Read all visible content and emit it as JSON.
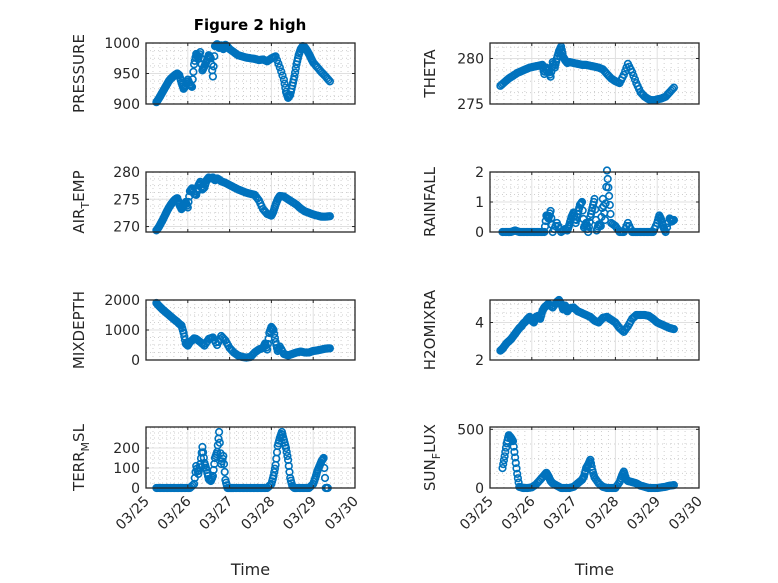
{
  "figure": {
    "title": "Figure 2 high",
    "marker_color": "#0072BD",
    "x_tick_labels": [
      "03/25",
      "03/26",
      "03/27",
      "03/28",
      "03/29",
      "03/30"
    ]
  },
  "chart_data": [
    {
      "type": "scatter",
      "title": "Figure 2 high",
      "ylabel": "PRESSURE",
      "xlabel": "",
      "xlim": [
        0,
        5
      ],
      "ylim": [
        900,
        1000
      ],
      "yticks": [
        900,
        950,
        1000
      ],
      "grid": true,
      "x": [
        0.25,
        0.3,
        0.35,
        0.4,
        0.45,
        0.5,
        0.55,
        0.6,
        0.65,
        0.7,
        0.75,
        0.8,
        0.85,
        0.9,
        0.95,
        1.0,
        1.05,
        1.1,
        1.15,
        1.2,
        1.25,
        1.3,
        1.35,
        1.4,
        1.45,
        1.5,
        1.55,
        1.6,
        1.65,
        1.7,
        1.75,
        1.8,
        1.85,
        1.9,
        1.95,
        2.0,
        2.1,
        2.2,
        2.3,
        2.4,
        2.5,
        2.6,
        2.7,
        2.8,
        2.9,
        3.0,
        3.1,
        3.2,
        3.3,
        3.35,
        3.4,
        3.45,
        3.5,
        3.55,
        3.6,
        3.65,
        3.7,
        3.75,
        3.8,
        3.85,
        3.9,
        3.95,
        4.0,
        4.1,
        4.2,
        4.3,
        4.4
      ],
      "values": [
        903,
        908,
        914,
        920,
        926,
        932,
        938,
        942,
        945,
        948,
        950,
        947,
        935,
        925,
        930,
        940,
        932,
        928,
        965,
        982,
        975,
        985,
        955,
        962,
        970,
        980,
        975,
        945,
        995,
        998,
        992,
        996,
        990,
        997,
        994,
        990,
        985,
        980,
        978,
        976,
        975,
        974,
        972,
        973,
        970,
        975,
        978,
        960,
        940,
        920,
        910,
        915,
        930,
        945,
        965,
        980,
        990,
        995,
        993,
        988,
        982,
        975,
        968,
        960,
        952,
        945,
        937
      ],
      "marker": "o"
    },
    {
      "type": "scatter",
      "ylabel": "THETA",
      "xlabel": "",
      "xlim": [
        0,
        5
      ],
      "ylim": [
        275,
        281.7
      ],
      "yticks": [
        275,
        280
      ],
      "grid": true,
      "x": [
        0.25,
        0.35,
        0.45,
        0.55,
        0.65,
        0.75,
        0.85,
        0.95,
        1.05,
        1.15,
        1.25,
        1.3,
        1.35,
        1.4,
        1.45,
        1.5,
        1.55,
        1.6,
        1.65,
        1.7,
        1.75,
        1.8,
        1.85,
        1.9,
        2.0,
        2.1,
        2.2,
        2.3,
        2.4,
        2.5,
        2.6,
        2.7,
        2.8,
        2.9,
        3.0,
        3.1,
        3.2,
        3.3,
        3.4,
        3.5,
        3.6,
        3.7,
        3.8,
        3.9,
        4.0,
        4.1,
        4.2,
        4.3,
        4.4
      ],
      "values": [
        277.0,
        277.4,
        277.8,
        278.1,
        278.4,
        278.6,
        278.8,
        279.0,
        279.1,
        279.2,
        279.3,
        278.3,
        279.0,
        278.7,
        278.0,
        279.6,
        279.0,
        280.0,
        280.8,
        281.3,
        280.2,
        279.8,
        279.5,
        279.6,
        279.5,
        279.4,
        279.3,
        279.3,
        279.2,
        279.1,
        279.0,
        278.8,
        278.3,
        277.8,
        277.5,
        277.3,
        278.2,
        279.4,
        278.5,
        277.3,
        276.3,
        275.8,
        275.5,
        275.4,
        275.5,
        275.6,
        275.8,
        276.3,
        276.8
      ],
      "marker": "o"
    },
    {
      "type": "scatter",
      "ylabel": "AIR_TEMP",
      "xlabel": "",
      "xlim": [
        0,
        5
      ],
      "ylim": [
        269,
        280
      ],
      "yticks": [
        270,
        275,
        280
      ],
      "grid": true,
      "x": [
        0.25,
        0.3,
        0.35,
        0.4,
        0.45,
        0.5,
        0.55,
        0.6,
        0.65,
        0.7,
        0.75,
        0.8,
        0.85,
        0.9,
        0.95,
        1.0,
        1.05,
        1.1,
        1.15,
        1.2,
        1.25,
        1.3,
        1.35,
        1.4,
        1.45,
        1.5,
        1.55,
        1.6,
        1.65,
        1.7,
        1.75,
        1.8,
        1.9,
        2.0,
        2.1,
        2.2,
        2.3,
        2.4,
        2.5,
        2.6,
        2.7,
        2.8,
        2.9,
        3.0,
        3.05,
        3.1,
        3.15,
        3.2,
        3.3,
        3.4,
        3.5,
        3.6,
        3.7,
        3.8,
        3.9,
        4.0,
        4.1,
        4.2,
        4.3,
        4.4
      ],
      "values": [
        269.3,
        269.8,
        270.5,
        271.2,
        272.0,
        272.8,
        273.5,
        274.1,
        274.6,
        275.0,
        275.2,
        274.0,
        273.2,
        273.8,
        274.5,
        273.5,
        276.5,
        277.0,
        276.0,
        275.8,
        277.5,
        278.2,
        276.8,
        277.2,
        278.5,
        279.0,
        278.8,
        279.0,
        278.5,
        278.8,
        278.6,
        278.3,
        278.0,
        277.6,
        277.2,
        276.8,
        276.5,
        276.2,
        276.0,
        275.8,
        274.8,
        273.2,
        272.3,
        272.0,
        272.8,
        274.0,
        275.0,
        275.6,
        275.5,
        275.0,
        274.5,
        274.0,
        273.3,
        272.8,
        272.5,
        272.2,
        272.0,
        271.8,
        271.8,
        271.9
      ],
      "marker": "o"
    },
    {
      "type": "scatter",
      "ylabel": "RAINFALL",
      "xlabel": "",
      "xlim": [
        0,
        5
      ],
      "ylim": [
        0,
        2
      ],
      "yticks": [
        0,
        1,
        2
      ],
      "grid": true,
      "x": [
        0.3,
        0.4,
        0.5,
        0.6,
        0.7,
        0.8,
        0.9,
        1.0,
        1.1,
        1.2,
        1.3,
        1.35,
        1.4,
        1.45,
        1.5,
        1.6,
        1.7,
        1.8,
        1.85,
        1.9,
        1.95,
        2.0,
        2.05,
        2.1,
        2.15,
        2.2,
        2.25,
        2.3,
        2.35,
        2.4,
        2.45,
        2.5,
        2.55,
        2.6,
        2.65,
        2.7,
        2.75,
        2.8,
        2.85,
        2.9,
        3.0,
        3.1,
        3.2,
        3.3,
        3.4,
        3.5,
        3.6,
        3.7,
        3.8,
        3.9,
        4.0,
        4.05,
        4.1,
        4.15,
        4.2,
        4.3,
        4.35,
        4.4
      ],
      "values": [
        0,
        0,
        0,
        0.05,
        0,
        0,
        0,
        0,
        0,
        0,
        0,
        0.55,
        0.45,
        0.7,
        0,
        0.3,
        0,
        0.1,
        0.05,
        0.25,
        0.5,
        0.65,
        0.3,
        0.6,
        0.9,
        1.0,
        0.15,
        0.3,
        0,
        0.5,
        0.8,
        1.1,
        0.05,
        0.25,
        0.2,
        1.1,
        0.4,
        2.05,
        1.2,
        0.3,
        0.2,
        0,
        0,
        0.3,
        0,
        0,
        0,
        0,
        0,
        0,
        0.3,
        0.55,
        0.4,
        0.15,
        0,
        0.45,
        0.35,
        0.4
      ],
      "marker": "o"
    },
    {
      "type": "scatter",
      "ylabel": "MIXDEPTH",
      "xlabel": "",
      "xlim": [
        0,
        5
      ],
      "ylim": [
        0,
        2000
      ],
      "yticks": [
        0,
        1000,
        2000
      ],
      "grid": true,
      "x": [
        0.25,
        0.3,
        0.35,
        0.4,
        0.45,
        0.5,
        0.55,
        0.6,
        0.65,
        0.7,
        0.75,
        0.8,
        0.85,
        0.9,
        0.95,
        1.0,
        1.05,
        1.1,
        1.15,
        1.2,
        1.3,
        1.4,
        1.5,
        1.6,
        1.7,
        1.8,
        1.9,
        2.0,
        2.1,
        2.2,
        2.3,
        2.4,
        2.5,
        2.6,
        2.7,
        2.8,
        2.85,
        2.9,
        2.95,
        3.0,
        3.05,
        3.1,
        3.15,
        3.2,
        3.3,
        3.4,
        3.5,
        3.6,
        3.7,
        3.8,
        3.9,
        4.0,
        4.1,
        4.2,
        4.3,
        4.4
      ],
      "values": [
        1900,
        1820,
        1750,
        1680,
        1620,
        1560,
        1500,
        1440,
        1380,
        1320,
        1270,
        1200,
        1150,
        900,
        550,
        480,
        600,
        650,
        720,
        700,
        600,
        480,
        700,
        750,
        500,
        800,
        650,
        400,
        250,
        150,
        100,
        80,
        100,
        250,
        350,
        400,
        550,
        350,
        900,
        1100,
        1000,
        600,
        300,
        450,
        200,
        150,
        200,
        250,
        280,
        250,
        250,
        300,
        320,
        350,
        380,
        390
      ],
      "marker": "o"
    },
    {
      "type": "scatter",
      "ylabel": "H2OMIXRA",
      "xlabel": "",
      "xlim": [
        0,
        5
      ],
      "ylim": [
        2,
        5.2
      ],
      "yticks": [
        2,
        4
      ],
      "grid": true,
      "x": [
        0.25,
        0.3,
        0.35,
        0.4,
        0.45,
        0.5,
        0.55,
        0.6,
        0.65,
        0.7,
        0.75,
        0.8,
        0.85,
        0.9,
        0.95,
        1.0,
        1.05,
        1.1,
        1.15,
        1.2,
        1.25,
        1.3,
        1.35,
        1.4,
        1.5,
        1.6,
        1.65,
        1.7,
        1.75,
        1.8,
        1.85,
        1.9,
        2.0,
        2.1,
        2.2,
        2.3,
        2.4,
        2.5,
        2.6,
        2.7,
        2.8,
        2.9,
        3.0,
        3.1,
        3.2,
        3.3,
        3.4,
        3.5,
        3.6,
        3.7,
        3.8,
        3.9,
        4.0,
        4.1,
        4.2,
        4.3,
        4.4
      ],
      "values": [
        2.5,
        2.6,
        2.75,
        2.9,
        3.0,
        3.1,
        3.25,
        3.4,
        3.55,
        3.7,
        3.8,
        3.95,
        4.05,
        4.2,
        4.3,
        4.1,
        4.0,
        4.3,
        4.35,
        4.2,
        4.6,
        4.8,
        4.9,
        5.0,
        4.8,
        5.1,
        5.2,
        5.0,
        4.7,
        4.9,
        4.6,
        4.75,
        4.8,
        4.6,
        4.5,
        4.4,
        4.3,
        4.1,
        4.0,
        4.25,
        4.3,
        4.15,
        4.0,
        3.7,
        3.5,
        3.8,
        4.2,
        4.4,
        4.4,
        4.4,
        4.35,
        4.2,
        4.0,
        3.9,
        3.8,
        3.7,
        3.65
      ],
      "marker": "o"
    },
    {
      "type": "scatter",
      "ylabel": "TERR_MSL",
      "xlabel": "Time",
      "xlim": [
        0,
        5
      ],
      "ylim": [
        0,
        305
      ],
      "yticks": [
        0,
        100,
        200
      ],
      "xtick_labels": [
        "03/25",
        "03/26",
        "03/27",
        "03/28",
        "03/29",
        "03/30"
      ],
      "grid": true,
      "x": [
        0.25,
        0.35,
        0.45,
        0.55,
        0.65,
        0.75,
        0.85,
        0.95,
        1.05,
        1.15,
        1.2,
        1.25,
        1.3,
        1.35,
        1.4,
        1.45,
        1.5,
        1.55,
        1.6,
        1.65,
        1.7,
        1.75,
        1.8,
        1.85,
        1.9,
        1.95,
        2.0,
        2.05,
        2.1,
        2.2,
        2.3,
        2.4,
        2.5,
        2.6,
        2.7,
        2.8,
        2.9,
        3.0,
        3.05,
        3.1,
        3.15,
        3.2,
        3.25,
        3.3,
        3.35,
        3.4,
        3.45,
        3.5,
        3.55,
        3.6,
        3.7,
        3.8,
        3.9,
        4.0,
        4.05,
        4.1,
        4.15,
        4.2,
        4.25,
        4.3,
        4.35
      ],
      "values": [
        0,
        0,
        0,
        0,
        0,
        0,
        0,
        0,
        0,
        20,
        110,
        70,
        120,
        205,
        125,
        90,
        45,
        35,
        60,
        150,
        180,
        280,
        120,
        160,
        40,
        0,
        0,
        0,
        0,
        0,
        0,
        0,
        0,
        0,
        0,
        0,
        0,
        20,
        60,
        115,
        210,
        250,
        280,
        240,
        200,
        140,
        50,
        10,
        0,
        0,
        0,
        0,
        0,
        20,
        50,
        85,
        110,
        135,
        150,
        0,
        0
      ],
      "marker": "o"
    },
    {
      "type": "scatter",
      "ylabel": "SUN_FLUX",
      "xlabel": "Time",
      "xlim": [
        0,
        5
      ],
      "ylim": [
        0,
        520
      ],
      "yticks": [
        0,
        500
      ],
      "xtick_labels": [
        "03/25",
        "03/26",
        "03/27",
        "03/28",
        "03/29",
        "03/30"
      ],
      "grid": true,
      "x": [
        0.3,
        0.35,
        0.4,
        0.45,
        0.5,
        0.55,
        0.6,
        0.65,
        0.7,
        0.75,
        0.8,
        0.9,
        1.0,
        1.1,
        1.2,
        1.3,
        1.35,
        1.4,
        1.45,
        1.5,
        1.6,
        1.7,
        1.8,
        1.9,
        2.0,
        2.1,
        2.2,
        2.25,
        2.3,
        2.35,
        2.4,
        2.45,
        2.5,
        2.6,
        2.7,
        2.8,
        2.9,
        3.0,
        3.1,
        3.15,
        3.2,
        3.25,
        3.3,
        3.4,
        3.5,
        3.6,
        3.7,
        3.8,
        3.9,
        4.0,
        4.1,
        4.2,
        4.3,
        4.4
      ],
      "values": [
        170,
        270,
        380,
        450,
        430,
        400,
        260,
        120,
        10,
        5,
        0,
        0,
        5,
        30,
        70,
        110,
        130,
        100,
        60,
        40,
        20,
        0,
        0,
        0,
        10,
        40,
        70,
        100,
        170,
        200,
        240,
        150,
        90,
        40,
        10,
        0,
        0,
        0,
        50,
        100,
        140,
        80,
        60,
        50,
        40,
        20,
        10,
        0,
        0,
        0,
        5,
        10,
        20,
        25
      ],
      "marker": "o"
    }
  ]
}
